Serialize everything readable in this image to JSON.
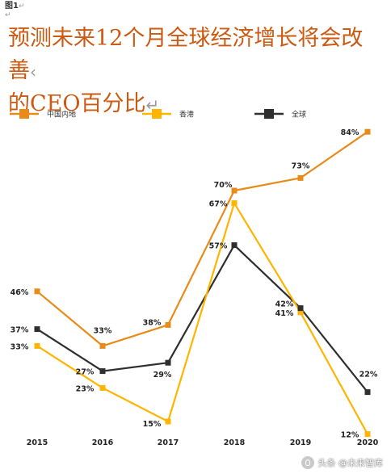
{
  "figure": {
    "label": "图1",
    "paragraph_mark": "↵",
    "title_line1": "预测未来12个月全球经济增长将会改善",
    "title_line1_mark": "‹",
    "title_line2": "的CEO百分比",
    "title_line2_mark": "↵"
  },
  "colors": {
    "mainland": "#e88b19",
    "hongkong": "#ffb400",
    "global": "#2f2f2f",
    "title": "#cc5a12"
  },
  "watermark": {
    "text": "头条 @未来智库",
    "icon": "toutiao-logo-icon"
  },
  "chart_data": {
    "type": "line",
    "x": [
      "2015",
      "2016",
      "2017",
      "2018",
      "2019",
      "2020"
    ],
    "series": [
      {
        "key": "mainland",
        "name": "中国内地",
        "values": [
          46,
          33,
          38,
          70,
          73,
          84
        ],
        "labels": [
          "46%",
          "33%",
          "38%",
          "70%",
          "73%",
          "84%"
        ]
      },
      {
        "key": "hongkong",
        "name": "香港",
        "values": [
          33,
          23,
          15,
          67,
          41,
          12
        ],
        "labels": [
          "33%",
          "23%",
          "15%",
          "67%",
          "41%",
          "12%"
        ]
      },
      {
        "key": "global",
        "name": "全球",
        "values": [
          37,
          27,
          29,
          57,
          42,
          22
        ],
        "labels": [
          "37%",
          "27%",
          "29%",
          "57%",
          "42%",
          "22%"
        ]
      }
    ],
    "legend": {
      "placement": "top",
      "entries": [
        "中国内地",
        "香港",
        "全球"
      ]
    },
    "grid": false,
    "ylim": [
      0,
      100
    ],
    "xlabel": "",
    "ylabel": ""
  }
}
